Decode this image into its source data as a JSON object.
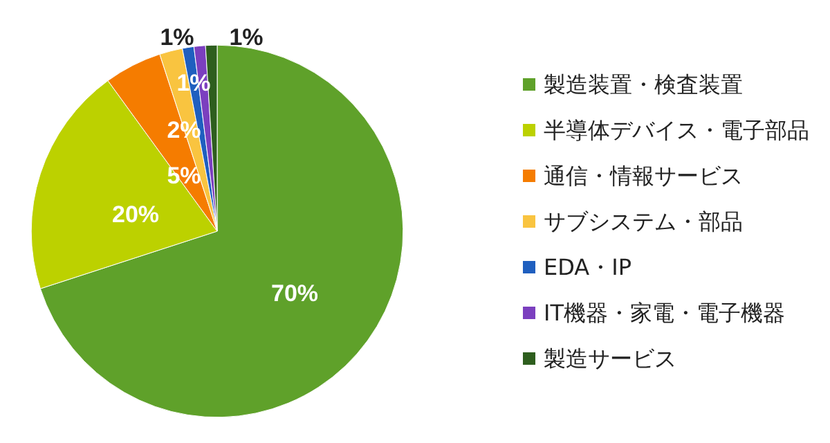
{
  "chart_data": {
    "type": "pie",
    "categories": [
      "製造装置・検査装置",
      "半導体デバイス・電子部品",
      "通信・情報サービス",
      "サブシステム・部品",
      "EDA・IP",
      "IT機器・家電・電子機器",
      "製造サービス"
    ],
    "values": [
      70,
      20,
      5,
      2,
      1,
      1,
      1
    ],
    "colors": [
      "#5fa12a",
      "#bcd100",
      "#f57c00",
      "#f9c440",
      "#1f5fbf",
      "#7b3fbf",
      "#2e5e1e"
    ],
    "value_labels": [
      "70%",
      "20%",
      "5%",
      "2%",
      "1%",
      "1%",
      "1%"
    ],
    "legend": "right"
  }
}
